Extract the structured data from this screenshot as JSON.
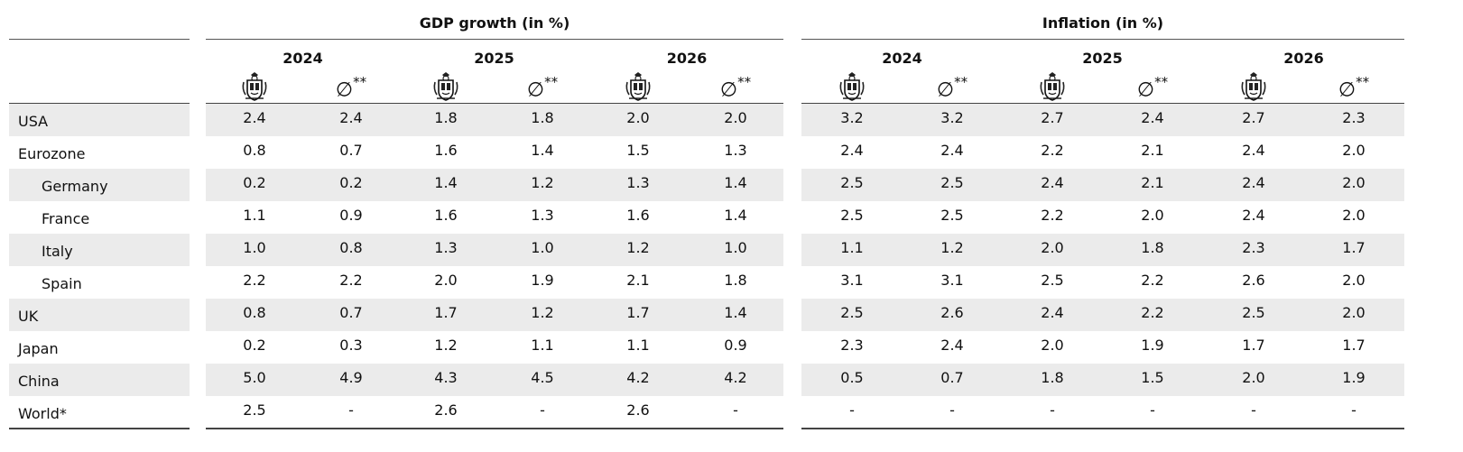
{
  "groups": {
    "gdp": {
      "title": "GDP growth (in %)",
      "years": [
        "2024",
        "2025",
        "2026"
      ]
    },
    "inflation": {
      "title": "Inflation (in %)",
      "years": [
        "2024",
        "2025",
        "2026"
      ]
    }
  },
  "column_icons": {
    "forecaster": "crest-icon",
    "consensus": "diameter-average-icon"
  },
  "average_marker": "∅",
  "average_suffix": "**",
  "rows": [
    {
      "label": "USA",
      "indent": false,
      "gdp": [
        "2.4",
        "2.4",
        "1.8",
        "1.8",
        "2.0",
        "2.0"
      ],
      "inflation": [
        "3.2",
        "3.2",
        "2.7",
        "2.4",
        "2.7",
        "2.3"
      ]
    },
    {
      "label": "Eurozone",
      "indent": false,
      "gdp": [
        "0.8",
        "0.7",
        "1.6",
        "1.4",
        "1.5",
        "1.3"
      ],
      "inflation": [
        "2.4",
        "2.4",
        "2.2",
        "2.1",
        "2.4",
        "2.0"
      ]
    },
    {
      "label": "Germany",
      "indent": true,
      "gdp": [
        "0.2",
        "0.2",
        "1.4",
        "1.2",
        "1.3",
        "1.4"
      ],
      "inflation": [
        "2.5",
        "2.5",
        "2.4",
        "2.1",
        "2.4",
        "2.0"
      ]
    },
    {
      "label": "France",
      "indent": true,
      "gdp": [
        "1.1",
        "0.9",
        "1.6",
        "1.3",
        "1.6",
        "1.4"
      ],
      "inflation": [
        "2.5",
        "2.5",
        "2.2",
        "2.0",
        "2.4",
        "2.0"
      ]
    },
    {
      "label": "Italy",
      "indent": true,
      "gdp": [
        "1.0",
        "0.8",
        "1.3",
        "1.0",
        "1.2",
        "1.0"
      ],
      "inflation": [
        "1.1",
        "1.2",
        "2.0",
        "1.8",
        "2.3",
        "1.7"
      ]
    },
    {
      "label": "Spain",
      "indent": true,
      "gdp": [
        "2.2",
        "2.2",
        "2.0",
        "1.9",
        "2.1",
        "1.8"
      ],
      "inflation": [
        "3.1",
        "3.1",
        "2.5",
        "2.2",
        "2.6",
        "2.0"
      ]
    },
    {
      "label": "UK",
      "indent": false,
      "gdp": [
        "0.8",
        "0.7",
        "1.7",
        "1.2",
        "1.7",
        "1.4"
      ],
      "inflation": [
        "2.5",
        "2.6",
        "2.4",
        "2.2",
        "2.5",
        "2.0"
      ]
    },
    {
      "label": "Japan",
      "indent": false,
      "gdp": [
        "0.2",
        "0.3",
        "1.2",
        "1.1",
        "1.1",
        "0.9"
      ],
      "inflation": [
        "2.3",
        "2.4",
        "2.0",
        "1.9",
        "1.7",
        "1.7"
      ]
    },
    {
      "label": "China",
      "indent": false,
      "gdp": [
        "5.0",
        "4.9",
        "4.3",
        "4.5",
        "4.2",
        "4.2"
      ],
      "inflation": [
        "0.5",
        "0.7",
        "1.8",
        "1.5",
        "2.0",
        "1.9"
      ]
    },
    {
      "label": "World*",
      "indent": false,
      "gdp": [
        "2.5",
        "-",
        "2.6",
        "-",
        "2.6",
        "-"
      ],
      "inflation": [
        "-",
        "-",
        "-",
        "-",
        "-",
        "-"
      ]
    }
  ],
  "colors": {
    "band": "#ebebeb",
    "rule": "#555555"
  }
}
